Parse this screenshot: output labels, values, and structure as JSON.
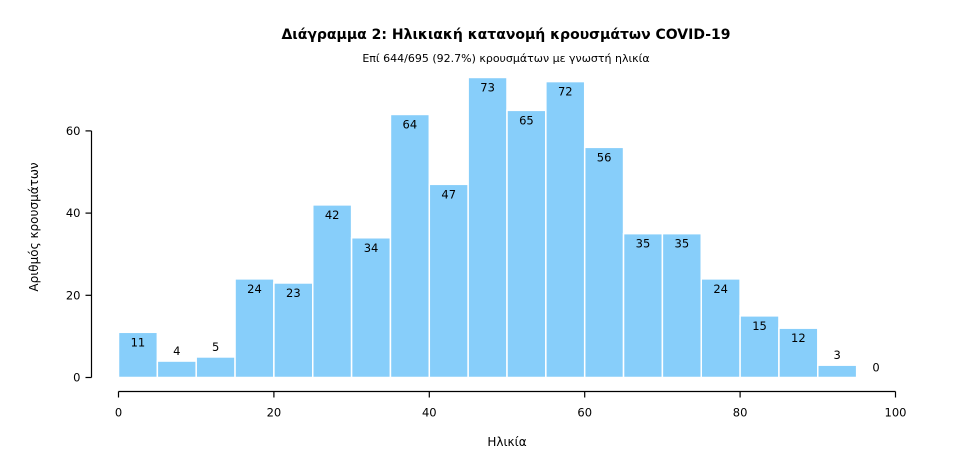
{
  "chart_data": {
    "type": "bar",
    "title": "Διάγραμμα 2: Ηλικιακή κατανομή κρουσμάτων COVID-19",
    "subtitle": "Επί 644/695 (92.7%) κρουσμάτων με γνωστή ηλικία",
    "xlabel": "Ηλικία",
    "ylabel": "Αριθμός κρουσμάτων",
    "bin_width": 5,
    "bin_starts": [
      0,
      5,
      10,
      15,
      20,
      25,
      30,
      35,
      40,
      45,
      50,
      55,
      60,
      65,
      70,
      75,
      80,
      85,
      90,
      95
    ],
    "values": [
      11,
      4,
      5,
      24,
      23,
      42,
      34,
      64,
      47,
      73,
      65,
      72,
      56,
      35,
      35,
      24,
      15,
      12,
      3,
      0
    ],
    "xlim": [
      0,
      100
    ],
    "ylim": [
      0,
      74
    ],
    "x_ticks": [
      0,
      20,
      40,
      60,
      80,
      100
    ],
    "y_ticks": [
      0,
      20,
      40,
      60
    ],
    "grid": false,
    "colors": {
      "bar": "#87cefa",
      "bar_edge": "#ffffff"
    }
  }
}
